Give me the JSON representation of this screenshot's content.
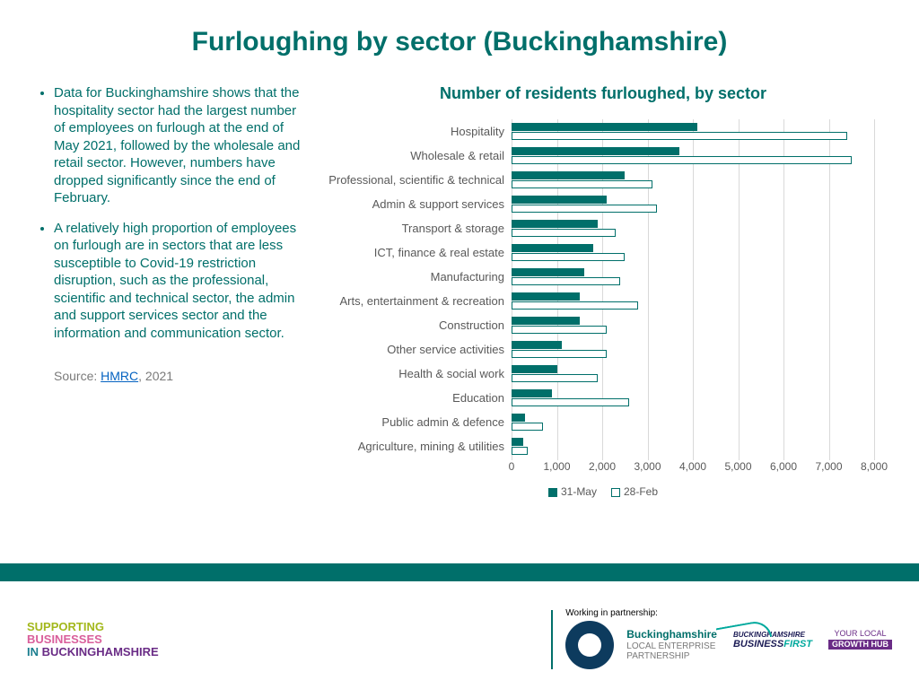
{
  "colors": {
    "teal": "#006f6a",
    "axis_text": "#595959",
    "grid": "#d9d9d9",
    "link": "#0563c1"
  },
  "title": "Furloughing by sector (Buckinghamshire)",
  "bullets": [
    "Data for Buckinghamshire shows that the hospitality sector had the largest number of employees on furlough at the end of May 2021, followed by the wholesale and retail sector. However, numbers have dropped significantly since the end of February.",
    "A relatively high proportion of employees on furlough are in sectors that are less susceptible to Covid-19 restriction disruption, such as the professional, scientific and technical sector, the admin and support services sector and the information and communication sector."
  ],
  "source": {
    "prefix": "Source: ",
    "link": "HMRC",
    "suffix": ", 2021"
  },
  "chart": {
    "title": "Number of residents furloughed, by sector",
    "type": "grouped-horizontal-bar",
    "x_min": 0,
    "x_max": 8000,
    "x_ticks": [
      {
        "v": 0,
        "label": "0"
      },
      {
        "v": 1000,
        "label": "1,000"
      },
      {
        "v": 2000,
        "label": "2,000"
      },
      {
        "v": 3000,
        "label": "3,000"
      },
      {
        "v": 4000,
        "label": "4,000"
      },
      {
        "v": 5000,
        "label": "5,000"
      },
      {
        "v": 6000,
        "label": "6,000"
      },
      {
        "v": 7000,
        "label": "7,000"
      },
      {
        "v": 8000,
        "label": "8,000"
      }
    ],
    "series": [
      {
        "key": "may",
        "label": "31-May",
        "fill": "#006f6a",
        "border": "#006f6a"
      },
      {
        "key": "feb",
        "label": "28-Feb",
        "fill": "#ffffff",
        "border": "#006f6a"
      }
    ],
    "categories": [
      {
        "label": "Hospitality",
        "may": 4100,
        "feb": 7400
      },
      {
        "label": "Wholesale & retail",
        "may": 3700,
        "feb": 7500
      },
      {
        "label": "Professional, scientific & technical",
        "may": 2500,
        "feb": 3100
      },
      {
        "label": "Admin & support services",
        "may": 2100,
        "feb": 3200
      },
      {
        "label": "Transport & storage",
        "may": 1900,
        "feb": 2300
      },
      {
        "label": "ICT, finance & real estate",
        "may": 1800,
        "feb": 2500
      },
      {
        "label": "Manufacturing",
        "may": 1600,
        "feb": 2400
      },
      {
        "label": "Arts, entertainment & recreation",
        "may": 1500,
        "feb": 2800
      },
      {
        "label": "Construction",
        "may": 1500,
        "feb": 2100
      },
      {
        "label": "Other service activities",
        "may": 1100,
        "feb": 2100
      },
      {
        "label": "Health & social work",
        "may": 1000,
        "feb": 1900
      },
      {
        "label": "Education",
        "may": 900,
        "feb": 2600
      },
      {
        "label": "Public admin & defence",
        "may": 300,
        "feb": 700
      },
      {
        "label": "Agriculture, mining & utilities",
        "may": 250,
        "feb": 350
      }
    ]
  },
  "logos": {
    "supporting": {
      "l1": "SUPPORTING",
      "l2": "BUSINESSES",
      "l3a": "IN ",
      "l3b": "BUCKINGHAMSHIRE"
    },
    "partner_label": "Working in partnership:",
    "lep": {
      "t1": "Buckinghamshire",
      "t2": "LOCAL ENTERPRISE",
      "t3": "PARTNERSHIP"
    },
    "biz_first": {
      "t1": "BUCKINGHAMSHIRE",
      "t2": "BUSINESS",
      "t3": "FIRST"
    },
    "growth_hub": {
      "t1": "YOUR LOCAL",
      "t2": "GROWTH HUB"
    }
  }
}
